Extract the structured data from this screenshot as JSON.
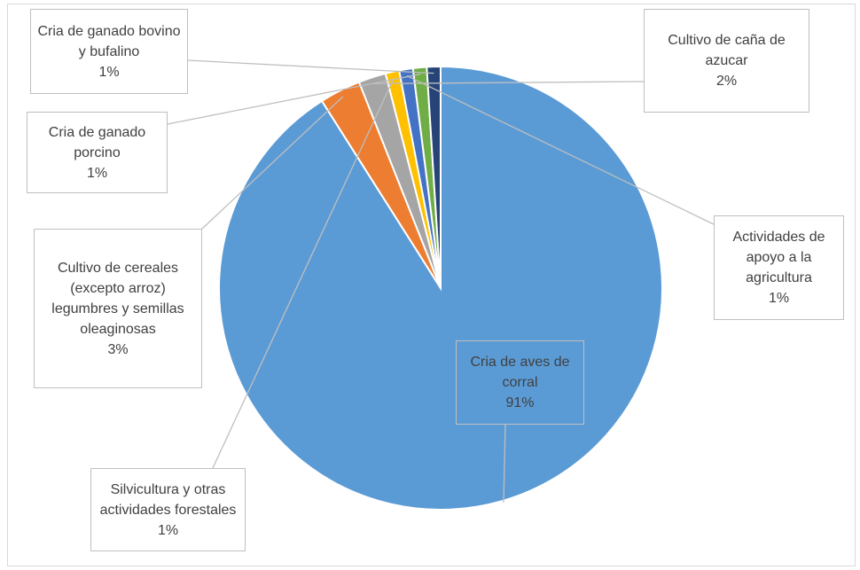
{
  "chart_data": {
    "type": "pie",
    "categories": [
      "Cria de aves de corral",
      "Cultivo de cereales (excepto arroz) legumbres y semillas oleaginosas",
      "Cultivo de caña de azucar",
      "Silvicultura y otras actividades forestales",
      "Actividades de apoyo a la agricultura",
      "Cria de ganado porcino",
      "Cria de ganado bovino y bufalino"
    ],
    "values": [
      91,
      3,
      2,
      1,
      1,
      1,
      1
    ],
    "value_labels": [
      "91%",
      "3%",
      "2%",
      "1%",
      "1%",
      "1%",
      "1%"
    ],
    "colors": [
      "#5b9bd5",
      "#ed7d31",
      "#a5a5a5",
      "#ffc000",
      "#4472c4",
      "#70ad47",
      "#264478"
    ]
  }
}
